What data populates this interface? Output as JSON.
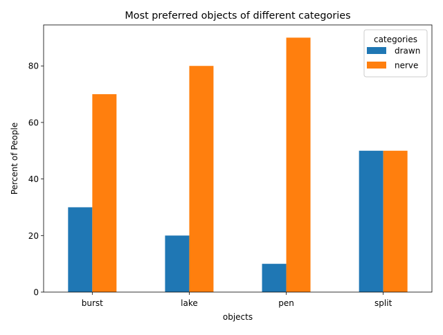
{
  "chart_data": {
    "type": "bar",
    "title": "Most preferred objects of different categories",
    "xlabel": "objects",
    "ylabel": "Percent of People",
    "categories": [
      "burst",
      "lake",
      "pen",
      "split"
    ],
    "series": [
      {
        "name": "drawn",
        "values": [
          30,
          20,
          10,
          50
        ],
        "color": "#1f77b4"
      },
      {
        "name": "nerve",
        "values": [
          70,
          80,
          90,
          50
        ],
        "color": "#ff7f0e"
      }
    ],
    "ylim": [
      0,
      94.5
    ],
    "yticks": [
      0,
      20,
      40,
      60,
      80
    ],
    "grid": false,
    "legend": {
      "title": "categories",
      "placement": "top-right"
    }
  }
}
